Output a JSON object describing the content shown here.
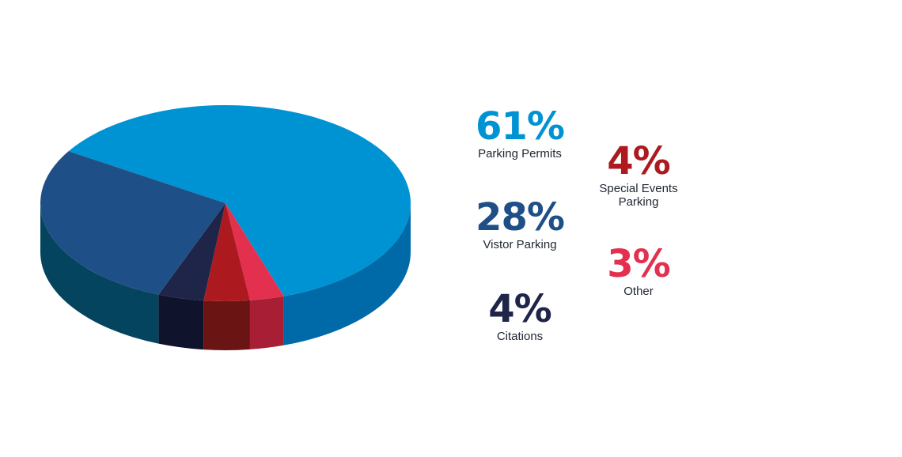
{
  "chart_data": {
    "type": "pie",
    "title": "",
    "slices": [
      {
        "label": "Parking Permits",
        "value": 61,
        "display": "61%",
        "color": "#0093d3",
        "side_color": "#0069a8"
      },
      {
        "label": "Other",
        "value": 3,
        "display": "3%",
        "color": "#e3304f",
        "side_color": "#a81e34"
      },
      {
        "label": "Special Events Parking",
        "value": 4,
        "display": "4%",
        "color": "#ac1a1f",
        "side_color": "#6a1414"
      },
      {
        "label": "Citations",
        "value": 4,
        "display": "4%",
        "color": "#1e2548",
        "side_color": "#10132c"
      },
      {
        "label": "Vistor Parking",
        "value": 28,
        "display": "28%",
        "color": "#1f4f87",
        "side_color": "#04445f"
      }
    ],
    "legend": "right"
  }
}
